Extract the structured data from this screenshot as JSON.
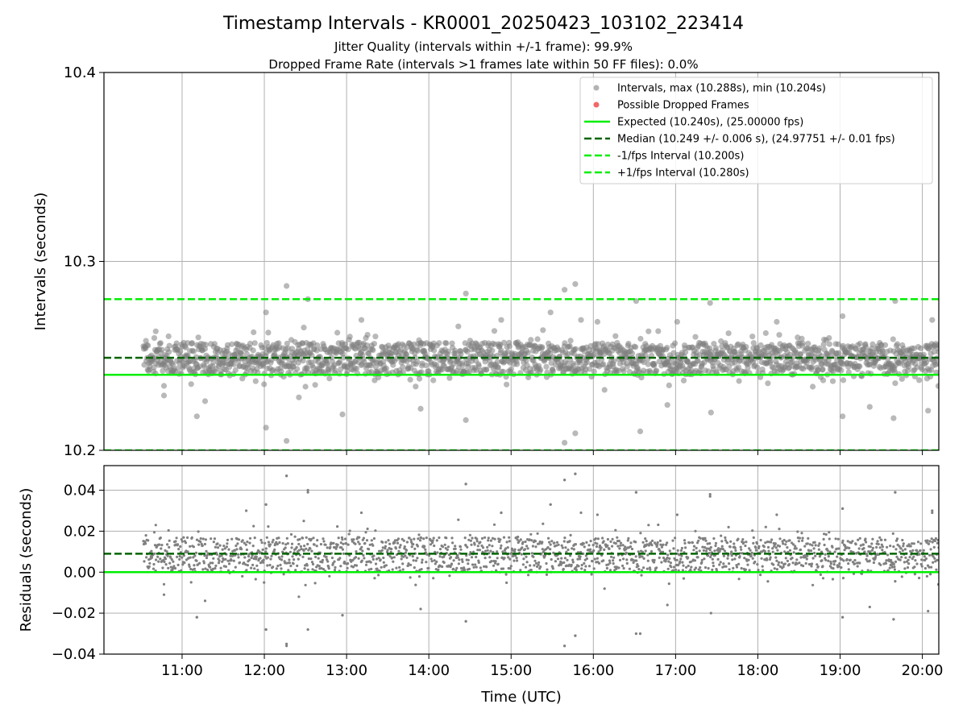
{
  "chart_data": [
    {
      "type": "scatter",
      "panel": "top",
      "title": "Timestamp Intervals - KR0001_20250423_103102_223414",
      "subtitle_lines": [
        "Jitter Quality (intervals within +/-1 frame): 99.9%",
        "Dropped Frame Rate (intervals >1 frames late within 50 FF files): 0.0%"
      ],
      "ylabel": "Intervals (seconds)",
      "ylim": [
        10.2,
        10.4
      ],
      "yticks": [
        10.2,
        10.3,
        10.4
      ],
      "ytick_labels": [
        "10.2",
        "10.3",
        "10.4"
      ],
      "xlim_hours": [
        10.05,
        20.2
      ],
      "xticks_hours": [
        11,
        12,
        13,
        14,
        15,
        16,
        17,
        18,
        19,
        20
      ],
      "xtick_labels": [
        "11:00",
        "12:00",
        "13:00",
        "14:00",
        "15:00",
        "16:00",
        "17:00",
        "18:00",
        "19:00",
        "20:00"
      ],
      "grid": true,
      "legend_placement": "top-right",
      "legend": [
        "Intervals, max (10.288s), min (10.204s)",
        "Possible Dropped Frames",
        "Expected (10.240s), (25.00000 fps)",
        "Median (10.249 +/- 0.006 s), (24.97751 +/- 0.01 fps)",
        "-1/fps Interval (10.200s)",
        "+1/fps Interval (10.280s)"
      ],
      "reference_lines": [
        {
          "name": "expected",
          "y": 10.24,
          "color": "#00ee00",
          "style": "solid"
        },
        {
          "name": "median",
          "y": 10.249,
          "color": "#006400",
          "style": "dashed"
        },
        {
          "name": "minus-one-fps",
          "y": 10.2,
          "color": "#00ee00",
          "style": "dashed"
        },
        {
          "name": "plus-one-fps",
          "y": 10.28,
          "color": "#00ee00",
          "style": "dashed"
        }
      ],
      "series": [
        {
          "name": "intervals",
          "start_hour": 10.53,
          "end_hour": 20.2,
          "count": 1900,
          "median": 10.249,
          "std": 0.006,
          "band_low": 10.24,
          "band_high": 10.257,
          "max": 10.288,
          "min": 10.204,
          "color": "#808080",
          "outliers": [
            {
              "hour": 12.27,
              "value": 10.287
            },
            {
              "hour": 12.27,
              "value": 10.205
            },
            {
              "hour": 15.78,
              "value": 10.288
            },
            {
              "hour": 15.65,
              "value": 10.285
            },
            {
              "hour": 15.65,
              "value": 10.204
            },
            {
              "hour": 14.45,
              "value": 10.283
            },
            {
              "hour": 12.53,
              "value": 10.28
            },
            {
              "hour": 16.52,
              "value": 10.279
            },
            {
              "hour": 17.42,
              "value": 10.278
            },
            {
              "hour": 19.67,
              "value": 10.279
            },
            {
              "hour": 12.02,
              "value": 10.212
            },
            {
              "hour": 15.78,
              "value": 10.209
            },
            {
              "hour": 16.57,
              "value": 10.21
            },
            {
              "hour": 12.95,
              "value": 10.219
            },
            {
              "hour": 19.03,
              "value": 10.218
            },
            {
              "hour": 11.18,
              "value": 10.218
            },
            {
              "hour": 19.65,
              "value": 10.217
            },
            {
              "hour": 14.45,
              "value": 10.216
            },
            {
              "hour": 10.78,
              "value": 10.229
            },
            {
              "hour": 20.07,
              "value": 10.221
            },
            {
              "hour": 15.48,
              "value": 10.273
            },
            {
              "hour": 12.02,
              "value": 10.273
            },
            {
              "hour": 19.03,
              "value": 10.271
            },
            {
              "hour": 12.48,
              "value": 10.265
            },
            {
              "hour": 16.05,
              "value": 10.268
            },
            {
              "hour": 17.02,
              "value": 10.268
            },
            {
              "hour": 18.23,
              "value": 10.268
            },
            {
              "hour": 13.18,
              "value": 10.269
            },
            {
              "hour": 10.68,
              "value": 10.263
            },
            {
              "hour": 14.88,
              "value": 10.269
            },
            {
              "hour": 15.85,
              "value": 10.269
            },
            {
              "hour": 20.12,
              "value": 10.269
            },
            {
              "hour": 13.9,
              "value": 10.222
            },
            {
              "hour": 16.9,
              "value": 10.224
            },
            {
              "hour": 19.36,
              "value": 10.223
            },
            {
              "hour": 12.42,
              "value": 10.228
            },
            {
              "hour": 17.43,
              "value": 10.22
            },
            {
              "hour": 11.28,
              "value": 10.226
            }
          ]
        }
      ]
    },
    {
      "type": "scatter",
      "panel": "bottom",
      "xlabel": "Time (UTC)",
      "ylabel": "Residuals (seconds)",
      "ylim": [
        -0.04,
        0.052
      ],
      "yticks": [
        -0.04,
        -0.02,
        0.0,
        0.02,
        0.04
      ],
      "ytick_labels": [
        "−0.04",
        "−0.02",
        "0.00",
        "0.02",
        "0.04"
      ],
      "xlim_hours": [
        10.05,
        20.2
      ],
      "xticks_hours": [
        11,
        12,
        13,
        14,
        15,
        16,
        17,
        18,
        19,
        20
      ],
      "xtick_labels": [
        "11:00",
        "12:00",
        "13:00",
        "14:00",
        "15:00",
        "16:00",
        "17:00",
        "18:00",
        "19:00",
        "20:00"
      ],
      "grid": true,
      "reference_lines": [
        {
          "name": "zero",
          "y": 0.0,
          "color": "#00ee00",
          "style": "solid"
        },
        {
          "name": "median-residual",
          "y": 0.009,
          "color": "#006400",
          "style": "dashed"
        }
      ],
      "series": [
        {
          "name": "residuals",
          "description_equivalent": "intervals minus expected 10.240 s",
          "count": 1900,
          "color": "#808080",
          "outliers": [
            {
              "hour": 12.27,
              "value": 0.047
            },
            {
              "hour": 15.78,
              "value": 0.048
            },
            {
              "hour": 15.65,
              "value": 0.045
            },
            {
              "hour": 14.45,
              "value": 0.043
            },
            {
              "hour": 12.53,
              "value": 0.039
            },
            {
              "hour": 16.52,
              "value": 0.039
            },
            {
              "hour": 19.67,
              "value": 0.039
            },
            {
              "hour": 17.42,
              "value": 0.037
            },
            {
              "hour": 12.27,
              "value": -0.036
            },
            {
              "hour": 15.65,
              "value": -0.036
            },
            {
              "hour": 15.78,
              "value": -0.031
            },
            {
              "hour": 16.52,
              "value": -0.03
            },
            {
              "hour": 12.02,
              "value": -0.028
            },
            {
              "hour": 12.53,
              "value": -0.028
            },
            {
              "hour": 14.45,
              "value": -0.024
            },
            {
              "hour": 11.18,
              "value": -0.022
            },
            {
              "hour": 19.03,
              "value": -0.022
            },
            {
              "hour": 19.65,
              "value": -0.023
            },
            {
              "hour": 12.95,
              "value": -0.021
            },
            {
              "hour": 12.02,
              "value": 0.033
            },
            {
              "hour": 15.48,
              "value": 0.033
            },
            {
              "hour": 19.03,
              "value": 0.031
            },
            {
              "hour": 20.12,
              "value": 0.03
            },
            {
              "hour": 14.88,
              "value": 0.029
            },
            {
              "hour": 11.78,
              "value": 0.03
            }
          ]
        }
      ]
    }
  ]
}
